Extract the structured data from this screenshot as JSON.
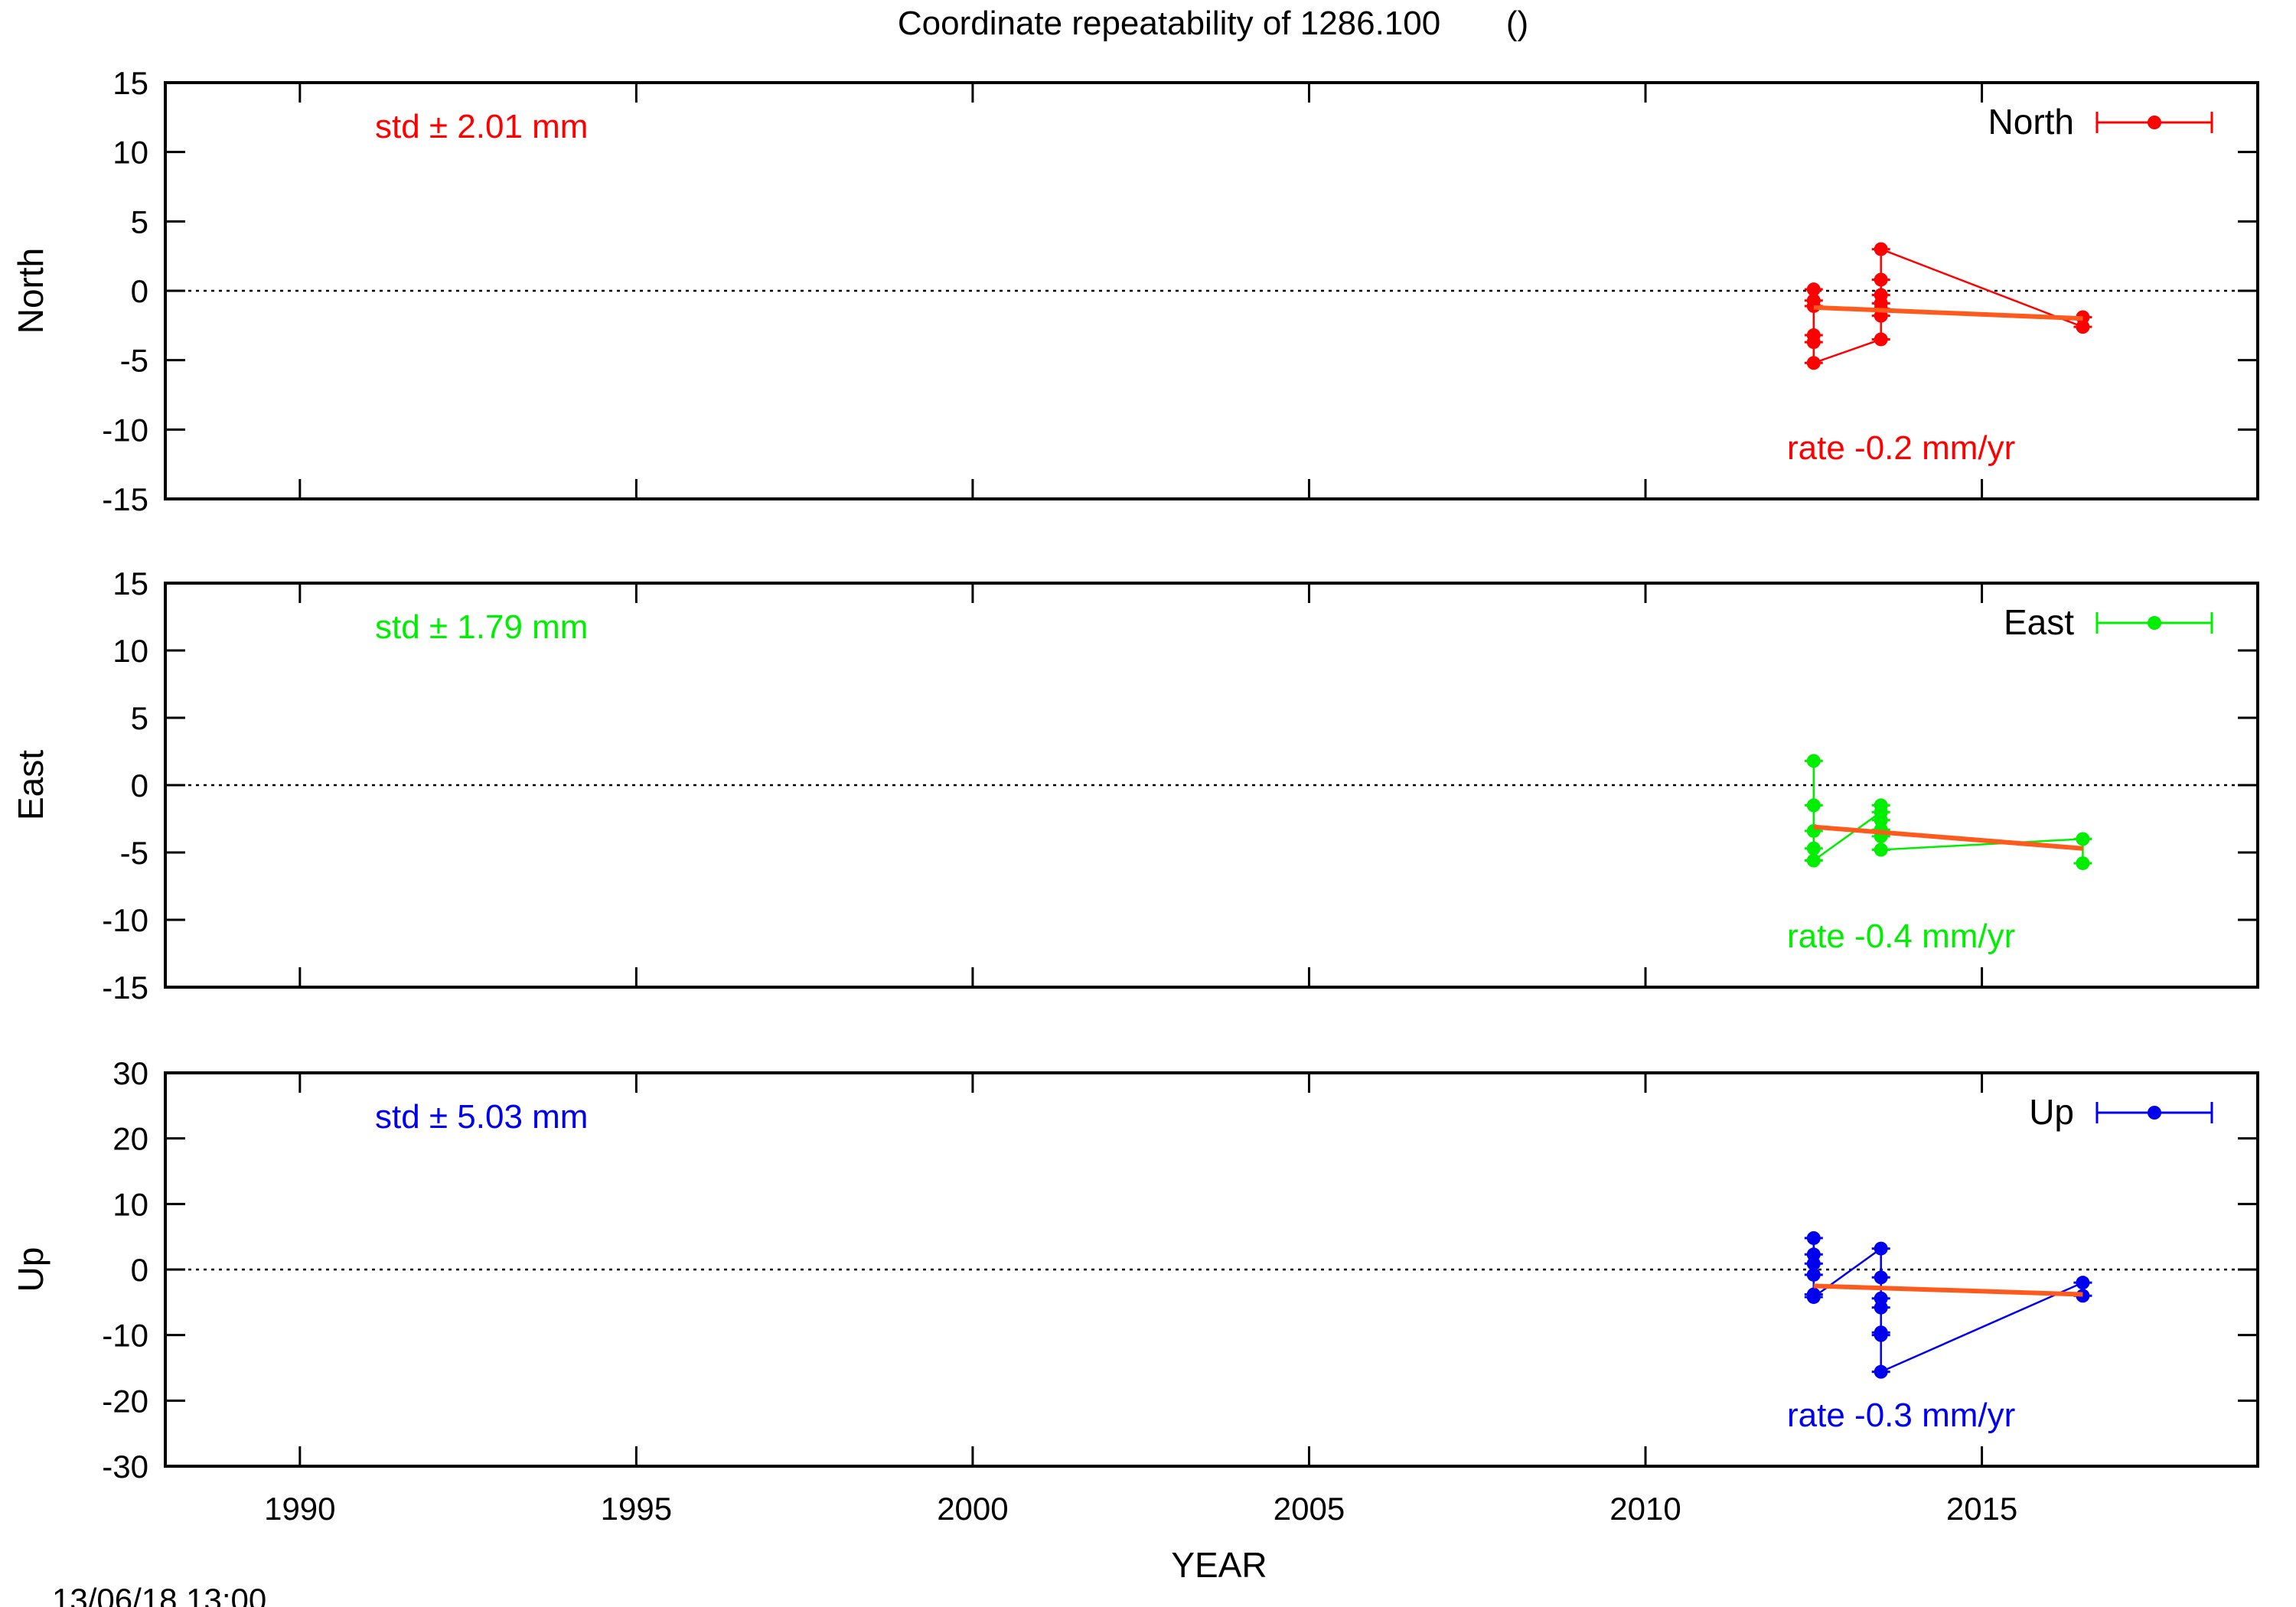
{
  "title": "Coordinate repeatability of 1286.100       ()",
  "footer_timestamp": "13/06/18 13:00",
  "chart_data": [
    {
      "type": "line",
      "panel": "North",
      "ylabel": "North",
      "xlabel": "",
      "xlim": [
        1988,
        2019.1
      ],
      "ylim": [
        -15,
        15
      ],
      "yticks": [
        15,
        10,
        5,
        0,
        -5,
        -10,
        -15
      ],
      "xticks": [
        1990,
        1995,
        2000,
        2005,
        2010,
        2015
      ],
      "show_xtick_labels": false,
      "zero_line": true,
      "color": "#ff0000",
      "legend": {
        "label": "North",
        "position": "top-right"
      },
      "std_label": "std ± 2.01 mm",
      "rate_label": "rate -0.2 mm/yr",
      "series": [
        {
          "name": "North",
          "x": [
            2012.5,
            2012.5,
            2012.5,
            2012.5,
            2012.5,
            2012.5,
            2013.5,
            2013.5,
            2013.5,
            2013.5,
            2013.5,
            2013.5,
            2013.5,
            2016.5,
            2016.5
          ],
          "y": [
            0.1,
            -0.7,
            -3.2,
            -3.7,
            -1.1,
            -5.2,
            -3.5,
            -1.8,
            -1.3,
            -0.9,
            -0.3,
            0.8,
            3.0,
            -2.6,
            -1.9
          ]
        }
      ],
      "trend": {
        "x": [
          2012.5,
          2016.5
        ],
        "y": [
          -1.2,
          -2.0
        ]
      }
    },
    {
      "type": "line",
      "panel": "East",
      "ylabel": "East",
      "xlabel": "",
      "xlim": [
        1988,
        2019.1
      ],
      "ylim": [
        -15,
        15
      ],
      "yticks": [
        15,
        10,
        5,
        0,
        -5,
        -10,
        -15
      ],
      "xticks": [
        1990,
        1995,
        2000,
        2005,
        2010,
        2015
      ],
      "show_xtick_labels": false,
      "zero_line": true,
      "color": "#00ee00",
      "legend": {
        "label": "East",
        "position": "top-right"
      },
      "std_label": "std ± 1.79 mm",
      "rate_label": "rate -0.4 mm/yr",
      "series": [
        {
          "name": "East",
          "x": [
            2012.5,
            2012.5,
            2012.5,
            2012.5,
            2012.5,
            2013.5,
            2013.5,
            2013.5,
            2013.5,
            2013.5,
            2013.5,
            2016.5,
            2016.5
          ],
          "y": [
            1.8,
            -1.5,
            -3.4,
            -4.7,
            -5.6,
            -2.0,
            -1.5,
            -2.6,
            -3.3,
            -3.8,
            -4.8,
            -4.0,
            -5.8
          ]
        }
      ],
      "trend": {
        "x": [
          2012.5,
          2016.5
        ],
        "y": [
          -3.1,
          -4.7
        ]
      }
    },
    {
      "type": "line",
      "panel": "Up",
      "ylabel": "Up",
      "xlabel": "YEAR",
      "xlim": [
        1988,
        2019.1
      ],
      "ylim": [
        -30,
        30
      ],
      "yticks": [
        30,
        20,
        10,
        0,
        -10,
        -20,
        -30
      ],
      "xticks": [
        1990,
        1995,
        2000,
        2005,
        2010,
        2015
      ],
      "show_xtick_labels": true,
      "zero_line": true,
      "color": "#0000ee",
      "legend": {
        "label": "Up",
        "position": "top-right"
      },
      "std_label": "std ± 5.03 mm",
      "rate_label": "rate -0.3 mm/yr",
      "series": [
        {
          "name": "Up",
          "x": [
            2012.5,
            2012.5,
            2012.5,
            2012.5,
            2012.5,
            2012.5,
            2013.5,
            2013.5,
            2013.5,
            2013.5,
            2013.5,
            2013.5,
            2013.5,
            2016.5,
            2016.5
          ],
          "y": [
            4.8,
            2.3,
            0.9,
            -0.8,
            -3.8,
            -4.2,
            3.2,
            -1.2,
            -4.4,
            -5.8,
            -9.6,
            -10.0,
            -15.6,
            -2.0,
            -4.0
          ]
        }
      ],
      "trend": {
        "x": [
          2012.5,
          2016.5
        ],
        "y": [
          -2.5,
          -3.8
        ]
      }
    }
  ]
}
